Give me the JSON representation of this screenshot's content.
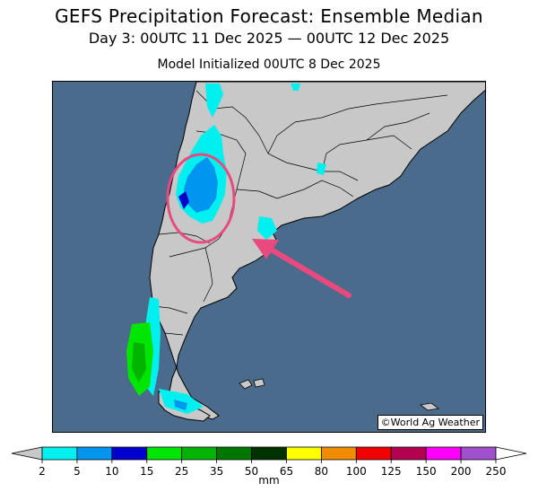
{
  "header": {
    "title": "GEFS Precipitation Forecast: Ensemble Median",
    "subtitle": "Day 3: 00UTC 11 Dec 2025 — 00UTC 12 Dec 2025",
    "init": "Model Initialized 00UTC 8 Dec 2025"
  },
  "map": {
    "credit": "©World Ag Weather",
    "colors": {
      "ocean": "#4a6b8c",
      "land": "#c8c8c8",
      "border": "#000000",
      "highlight": "#e84a7f"
    },
    "annotations": [
      "highlight-ellipse",
      "pointer-arrow"
    ]
  },
  "colorbar": {
    "unit": "mm",
    "ticks": [
      "2",
      "5",
      "10",
      "15",
      "25",
      "35",
      "50",
      "65",
      "80",
      "100",
      "125",
      "150",
      "200",
      "250"
    ],
    "colors": [
      "#00f0f0",
      "#0096f0",
      "#0000cc",
      "#00e600",
      "#00b400",
      "#007800",
      "#003200",
      "#ffff00",
      "#f08c00",
      "#f00000",
      "#b40050",
      "#ff00ff",
      "#a050cc"
    ],
    "under_color": "#c8c8c8",
    "over_color": "#ffffff"
  }
}
